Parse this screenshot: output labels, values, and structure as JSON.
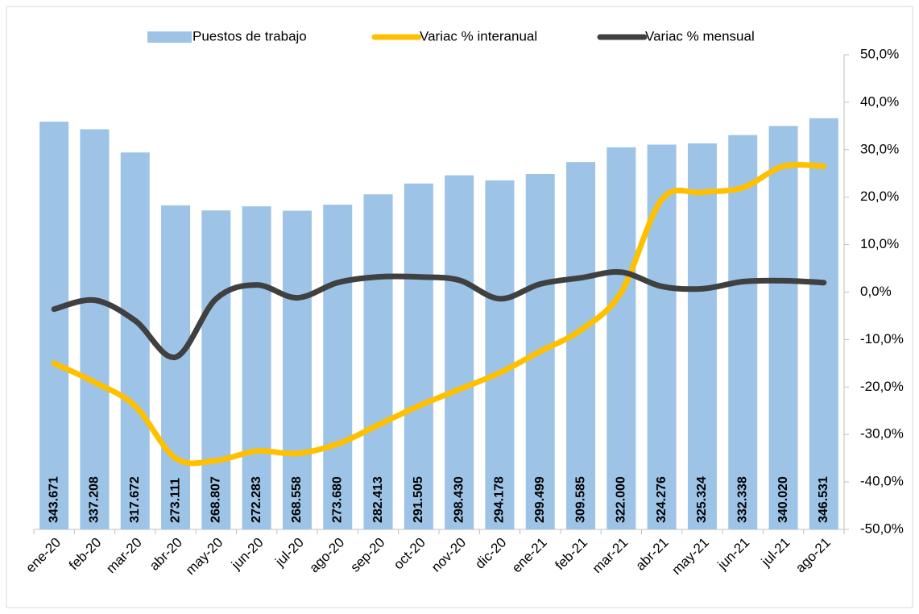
{
  "chart_data": {
    "type": "bar-line",
    "categories": [
      "ene-20",
      "feb-20",
      "mar-20",
      "abr-20",
      "may-20",
      "jun-20",
      "jul-20",
      "ago-20",
      "sep-20",
      "oct-20",
      "nov-20",
      "dic-20",
      "ene-21",
      "feb-21",
      "mar-21",
      "abr-21",
      "may-21",
      "jun-21",
      "jul-21",
      "ago-21"
    ],
    "series": [
      {
        "name": "Puestos de trabajo",
        "type": "bar",
        "color": "#9dc3e6",
        "values": [
          343671,
          337208,
          317672,
          273111,
          268807,
          272283,
          268558,
          273680,
          282413,
          291505,
          298430,
          294178,
          299499,
          309585,
          322000,
          324276,
          325324,
          332338,
          340020,
          346531
        ],
        "value_labels": [
          "343.671",
          "337.208",
          "317.672",
          "273.111",
          "268.807",
          "272.283",
          "268.558",
          "273.680",
          "282.413",
          "291.505",
          "298.430",
          "294.178",
          "299.499",
          "309.585",
          "322.000",
          "324.276",
          "325.324",
          "332.338",
          "340.020",
          "346.531"
        ]
      },
      {
        "name": "Variac % interanual",
        "type": "line",
        "axis": "y2",
        "color": "#ffc000",
        "values": [
          -15,
          -19,
          -24,
          -35,
          -35.5,
          -33.5,
          -34,
          -32,
          -28,
          -24,
          -20.5,
          -17,
          -12.5,
          -8,
          0,
          19.5,
          21,
          22,
          26.5,
          26.5
        ]
      },
      {
        "name": "Variac % mensual",
        "type": "line",
        "axis": "y2",
        "color": "#404040",
        "values": [
          -3.6,
          -1.7,
          -6,
          -13.7,
          -1.4,
          1.5,
          -1.2,
          2,
          3.2,
          3.2,
          2.5,
          -1.4,
          1.7,
          3,
          4.2,
          1.2,
          0.7,
          2.2,
          2.4,
          2
        ]
      }
    ],
    "ylim": [
      0,
      400000
    ],
    "y2lim": [
      -50,
      50
    ],
    "y2ticks": [
      {
        "value": 50,
        "label": "50,0%"
      },
      {
        "value": 40,
        "label": "40,0%"
      },
      {
        "value": 30,
        "label": "30,0%"
      },
      {
        "value": 20,
        "label": "20,0%"
      },
      {
        "value": 10,
        "label": "10,0%"
      },
      {
        "value": 0,
        "label": "0,0%"
      },
      {
        "value": -10,
        "label": "-10,0%"
      },
      {
        "value": -20,
        "label": "-20,0%"
      },
      {
        "value": -30,
        "label": "-30,0%"
      },
      {
        "value": -40,
        "label": "-40,0%"
      },
      {
        "value": -50,
        "label": "-50,0%"
      }
    ],
    "legend": "top"
  }
}
